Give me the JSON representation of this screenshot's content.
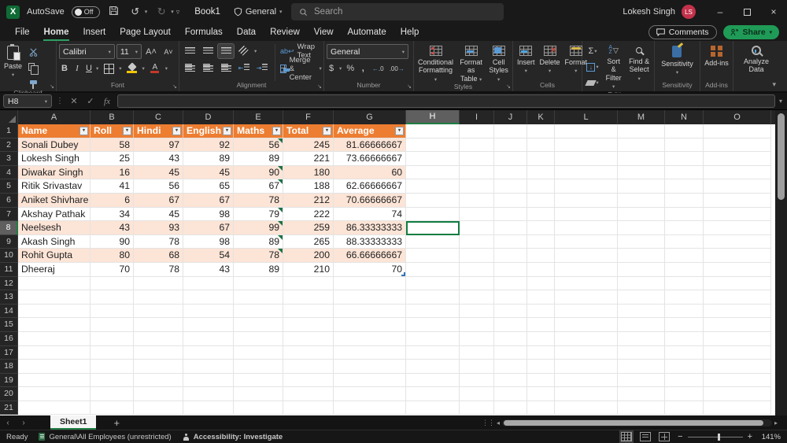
{
  "titlebar": {
    "autosave_label": "AutoSave",
    "autosave_state": "Off",
    "doc_title": "Book1",
    "doc_badge": "General",
    "search_placeholder": "Search",
    "user_name": "Lokesh Singh",
    "user_initials": "LS",
    "excel_logo_letter": "X"
  },
  "menubar": {
    "tabs": [
      "File",
      "Home",
      "Insert",
      "Page Layout",
      "Formulas",
      "Data",
      "Review",
      "View",
      "Automate",
      "Help"
    ],
    "active_tab": "Home",
    "comments_label": "Comments",
    "share_label": "Share"
  },
  "ribbon": {
    "paste": "Paste",
    "font_name": "Calibri",
    "font_size": "11",
    "wrap_text": "Wrap Text",
    "merge_center": "Merge & Center",
    "number_format": "General",
    "conditional_line1": "Conditional",
    "conditional_line2": "Formatting",
    "format_table_line1": "Format as",
    "format_table_line2": "Table",
    "cell_styles_line1": "Cell",
    "cell_styles_line2": "Styles",
    "insert": "Insert",
    "delete": "Delete",
    "format": "Format",
    "sort_filter_line1": "Sort &",
    "sort_filter_line2": "Filter",
    "find_select_line1": "Find &",
    "find_select_line2": "Select",
    "sensitivity": "Sensitivity",
    "addins": "Add-ins",
    "analyze_line1": "Analyze",
    "analyze_line2": "Data",
    "labels": {
      "clipboard": "Clipboard",
      "font": "Font",
      "alignment": "Alignment",
      "number": "Number",
      "styles": "Styles",
      "cells": "Cells",
      "editing": "Editing",
      "sensitivity": "Sensitivity",
      "addins": "Add-ins"
    }
  },
  "formulabar": {
    "name_box": "H8",
    "fx_label": "fx",
    "formula_value": ""
  },
  "sheet": {
    "columns": [
      {
        "letter": "A",
        "width": 92
      },
      {
        "letter": "B",
        "width": 55
      },
      {
        "letter": "C",
        "width": 63
      },
      {
        "letter": "D",
        "width": 64
      },
      {
        "letter": "E",
        "width": 63
      },
      {
        "letter": "F",
        "width": 64
      },
      {
        "letter": "G",
        "width": 92
      },
      {
        "letter": "H",
        "width": 68
      },
      {
        "letter": "I",
        "width": 44
      },
      {
        "letter": "J",
        "width": 42
      },
      {
        "letter": "K",
        "width": 35
      },
      {
        "letter": "L",
        "width": 80
      },
      {
        "letter": "M",
        "width": 60
      },
      {
        "letter": "N",
        "width": 49
      },
      {
        "letter": "O",
        "width": 86
      }
    ],
    "row_count": 21,
    "selected": {
      "column": "H",
      "row": 8
    },
    "table": {
      "header_fill": "#ED7D31",
      "band_fill": "#FCE4D6",
      "flag_color": "#1E7145",
      "headers": [
        "Name",
        "Roll",
        "Hindi",
        "English",
        "Maths",
        "Total",
        "Average"
      ],
      "rows": [
        [
          "Sonali Dubey",
          "58",
          "97",
          "92",
          "56",
          "245",
          "81.66666667"
        ],
        [
          "Lokesh Singh",
          "25",
          "43",
          "89",
          "89",
          "221",
          "73.66666667"
        ],
        [
          "Diwakar Singh",
          "16",
          "45",
          "45",
          "90",
          "180",
          "60"
        ],
        [
          "Ritik Srivastav",
          "41",
          "56",
          "65",
          "67",
          "188",
          "62.66666667"
        ],
        [
          "Aniket Shivhare",
          "6",
          "67",
          "67",
          "78",
          "212",
          "70.66666667"
        ],
        [
          "Akshay Pathak",
          "34",
          "45",
          "98",
          "79",
          "222",
          "74"
        ],
        [
          "Neelsesh",
          "43",
          "93",
          "67",
          "99",
          "259",
          "86.33333333"
        ],
        [
          "Akash Singh",
          "90",
          "78",
          "98",
          "89",
          "265",
          "88.33333333"
        ],
        [
          "Rohit Gupta",
          "80",
          "68",
          "54",
          "78",
          "200",
          "66.66666667"
        ],
        [
          "Dheeraj",
          "70",
          "78",
          "43",
          "89",
          "210",
          "70"
        ]
      ],
      "maths_flag_rows": [
        2,
        4,
        5,
        7,
        8,
        9,
        10
      ]
    }
  },
  "tabbar": {
    "sheet_name": "Sheet1",
    "add_label": "+"
  },
  "statusbar": {
    "ready": "Ready",
    "sensitivity_label": "General\\All Employees (unrestricted)",
    "accessibility_label": "Accessibility: Investigate",
    "zoom_level": "141%"
  }
}
